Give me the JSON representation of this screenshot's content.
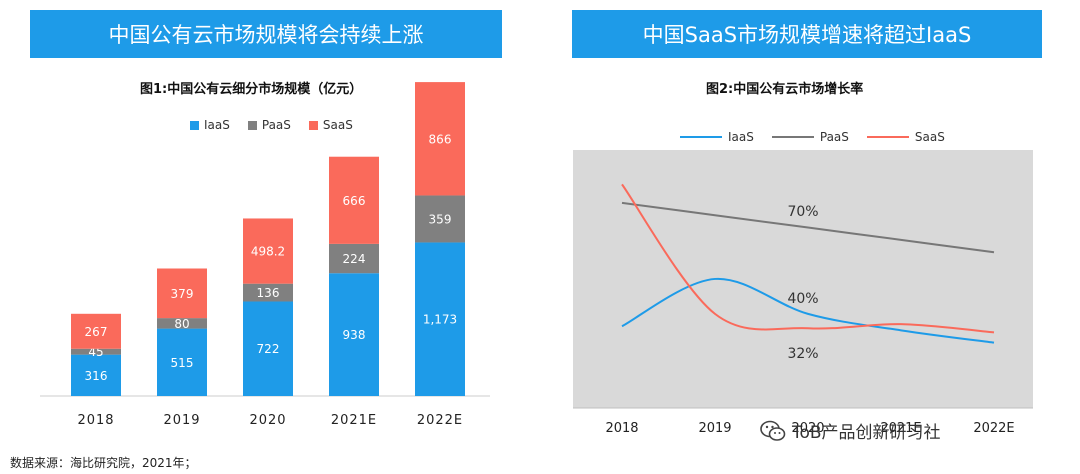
{
  "left_panel": {
    "banner": "中国公有云市场规模将会持续上涨",
    "subtitle": "图1:中国公有云细分市场规模（亿元）"
  },
  "right_panel": {
    "banner": "中国SaaS市场规模增速将超过IaaS",
    "subtitle": "图2:中国公有云市场增长率"
  },
  "source": "数据来源：海比研究院，2021年；",
  "watermark": "ToB产品创新研习社",
  "colors": {
    "iaas": "#1e9be8",
    "paas": "#808080",
    "saas": "#fa6a5b",
    "banner": "#1e9be8",
    "plot_bg": "#d9d9d9"
  },
  "chart_data": [
    {
      "type": "bar",
      "stacked": true,
      "title": "图1:中国公有云细分市场规模（亿元）",
      "categories": [
        "2018",
        "2019",
        "2020",
        "2021E",
        "2022E"
      ],
      "series": [
        {
          "name": "IaaS",
          "values": [
            316,
            515,
            722,
            938,
            1173
          ],
          "labels": [
            "316",
            "515",
            "722",
            "938",
            "1,173"
          ]
        },
        {
          "name": "PaaS",
          "values": [
            45,
            80,
            136,
            224,
            359
          ],
          "labels": [
            "45",
            "80",
            "136",
            "224",
            "359"
          ]
        },
        {
          "name": "SaaS",
          "values": [
            267,
            379,
            498.2,
            666,
            866
          ],
          "labels": [
            "267",
            "379",
            "498.2",
            "666",
            "866"
          ]
        }
      ],
      "ylim": [
        0,
        2400
      ],
      "legend": "top",
      "grid": false
    },
    {
      "type": "line",
      "title": "图2:中国公有云市场增长率",
      "categories": [
        "2018",
        "2019",
        "2020",
        "2021E",
        "2022E"
      ],
      "category_labels_visible": [
        "2018",
        "2019",
        "2020",
        "2021E",
        "2022E"
      ],
      "series": [
        {
          "name": "IaaS",
          "values": [
            0.34,
            0.57,
            0.4,
            0.32,
            0.26
          ]
        },
        {
          "name": "PaaS",
          "values": [
            0.94,
            0.88,
            0.82,
            0.76,
            0.7
          ]
        },
        {
          "name": "SaaS",
          "values": [
            1.03,
            0.4,
            0.33,
            0.35,
            0.31
          ]
        }
      ],
      "annotations": [
        "70%",
        "40%",
        "32%"
      ],
      "ylim": [
        0,
        1.1
      ],
      "legend": "top",
      "grid": false
    }
  ]
}
